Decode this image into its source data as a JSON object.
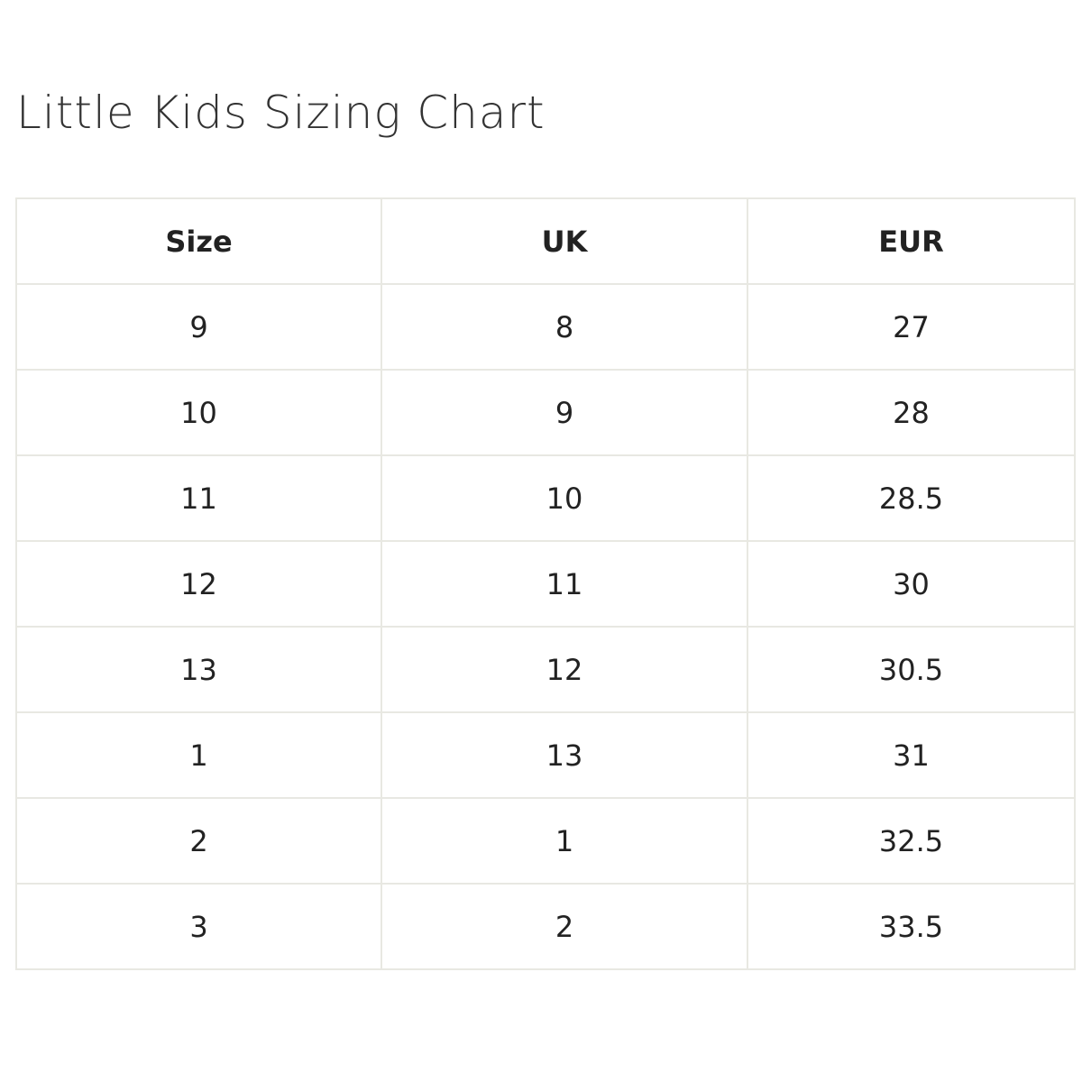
{
  "header": {
    "title": "Little Kids Sizing Chart"
  },
  "table": {
    "columns": [
      "Size",
      "UK",
      "EUR"
    ],
    "rows": [
      [
        9,
        8,
        27
      ],
      [
        10,
        9,
        28
      ],
      [
        11,
        10,
        28.5
      ],
      [
        12,
        11,
        30
      ],
      [
        13,
        12,
        30.5
      ],
      [
        1,
        13,
        31
      ],
      [
        2,
        1,
        32.5
      ],
      [
        3,
        2,
        33.5
      ]
    ]
  }
}
